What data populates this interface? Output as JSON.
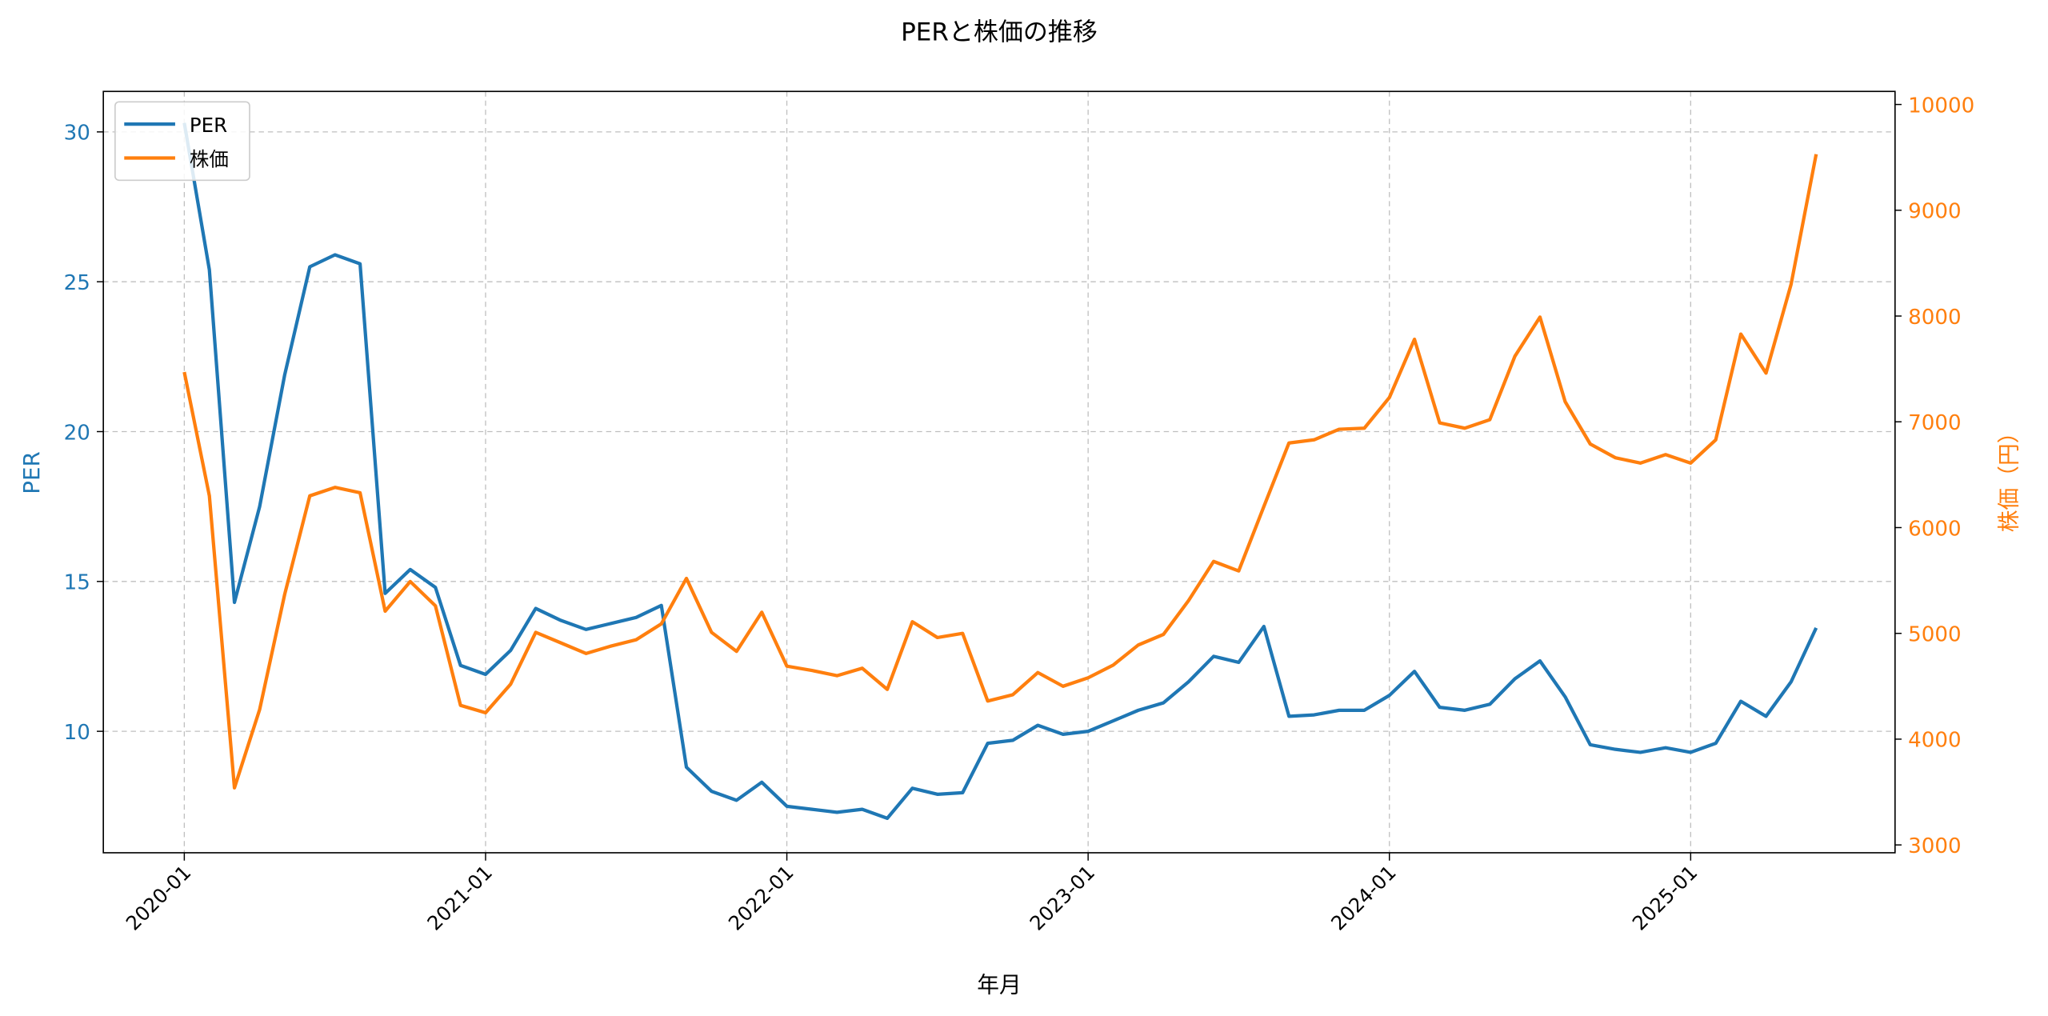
{
  "chart_data": {
    "type": "line",
    "title": "PERと株価の推移",
    "xlabel": "年月",
    "ylabel_left": "PER",
    "ylabel_right": "株価（円）",
    "colors": {
      "per": "#1f77b4",
      "price": "#ff7f0e",
      "text": "#000000",
      "grid": "#b0b0b0"
    },
    "legend": {
      "position": "upper left",
      "entries": [
        "PER",
        "株価"
      ]
    },
    "grid": true,
    "x_ticks": [
      "2020-01",
      "2021-01",
      "2022-01",
      "2023-01",
      "2024-01",
      "2025-01"
    ],
    "y_left_ticks": [
      10,
      15,
      20,
      25,
      30
    ],
    "y_right_ticks": [
      3000,
      4000,
      5000,
      6000,
      7000,
      8000,
      9000,
      10000
    ],
    "ylim_left": [
      5.9,
      31.4
    ],
    "ylim_right": [
      2920,
      10120
    ],
    "x": [
      "2020-01",
      "2020-02",
      "2020-03",
      "2020-04",
      "2020-05",
      "2020-06",
      "2020-07",
      "2020-08",
      "2020-09",
      "2020-10",
      "2020-11",
      "2020-12",
      "2021-01",
      "2021-02",
      "2021-03",
      "2021-04",
      "2021-05",
      "2021-06",
      "2021-07",
      "2021-08",
      "2021-09",
      "2021-10",
      "2021-11",
      "2021-12",
      "2022-01",
      "2022-02",
      "2022-03",
      "2022-04",
      "2022-05",
      "2022-06",
      "2022-07",
      "2022-08",
      "2022-09",
      "2022-10",
      "2022-11",
      "2022-12",
      "2023-01",
      "2023-02",
      "2023-03",
      "2023-04",
      "2023-05",
      "2023-06",
      "2023-07",
      "2023-08",
      "2023-09",
      "2023-10",
      "2023-11",
      "2023-12",
      "2024-01",
      "2024-02",
      "2024-03",
      "2024-04",
      "2024-05",
      "2024-06",
      "2024-07",
      "2024-08",
      "2024-09",
      "2024-10",
      "2024-11",
      "2024-12",
      "2025-01",
      "2025-02",
      "2025-03",
      "2025-04",
      "2025-05",
      "2025-06"
    ],
    "series": [
      {
        "name": "PER",
        "axis": "left",
        "values": [
          30.3,
          25.4,
          14.3,
          17.5,
          21.9,
          25.5,
          25.9,
          25.6,
          14.6,
          15.4,
          14.8,
          12.2,
          11.9,
          12.7,
          14.1,
          13.7,
          13.4,
          13.6,
          13.8,
          14.2,
          8.8,
          8.0,
          7.7,
          8.3,
          7.5,
          7.4,
          7.3,
          7.4,
          7.1,
          8.1,
          7.9,
          7.95,
          9.6,
          9.7,
          10.2,
          9.9,
          10.0,
          10.35,
          10.7,
          10.95,
          11.65,
          12.5,
          12.3,
          13.5,
          10.5,
          10.55,
          10.7,
          10.7,
          11.2,
          12.0,
          10.8,
          10.7,
          10.9,
          11.75,
          12.35,
          11.15,
          9.55,
          9.4,
          9.3,
          9.45,
          9.3,
          9.6,
          11.0,
          10.5,
          11.65,
          13.45
        ]
      },
      {
        "name": "株価",
        "axis": "right",
        "values": [
          7470,
          6300,
          3540,
          4280,
          5370,
          6300,
          6380,
          6330,
          5210,
          5490,
          5260,
          4320,
          4250,
          4520,
          5010,
          4910,
          4810,
          4880,
          4940,
          5090,
          5520,
          5010,
          4830,
          5200,
          4690,
          4650,
          4600,
          4670,
          4470,
          5110,
          4960,
          5000,
          4360,
          4420,
          4630,
          4500,
          4580,
          4700,
          4890,
          4990,
          5310,
          5680,
          5590,
          6200,
          6800,
          6830,
          6930,
          6940,
          7230,
          7780,
          6990,
          6940,
          7020,
          7620,
          7990,
          7190,
          6790,
          6660,
          6610,
          6690,
          6610,
          6830,
          7830,
          7460,
          8300,
          9530
        ]
      }
    ]
  }
}
